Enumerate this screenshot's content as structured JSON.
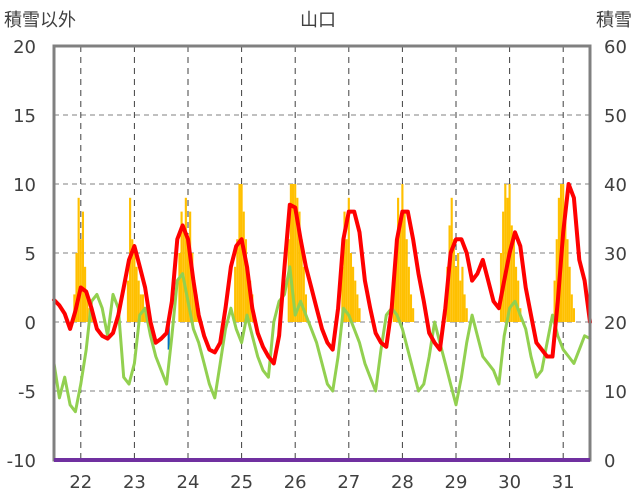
{
  "chart_data": {
    "type": "bar",
    "title": "山口",
    "ylabel": "積雪以外",
    "y2label": "積雪",
    "ylim": [
      -10,
      20
    ],
    "y2lim": [
      0,
      60
    ],
    "yticks": [
      "20",
      "15",
      "10",
      "5",
      "0",
      "-5",
      "-10"
    ],
    "y2ticks": [
      "60",
      "50",
      "40",
      "30",
      "20",
      "10",
      "0"
    ],
    "xlim": [
      21.5,
      31.5
    ],
    "xticks": [
      "22",
      "23",
      "24",
      "25",
      "26",
      "27",
      "28",
      "29",
      "30",
      "31"
    ],
    "grid": "vertical dashed, horizontal dashed",
    "colors": {
      "precip": "#ffc000",
      "temperature": "#ff0000",
      "dewpoint": "#92d050",
      "blue_mark": "#0070c0",
      "snow_baseline": "#7030a0",
      "frame": "#808080"
    },
    "series": [
      {
        "type": "bar",
        "color": "#ffc000",
        "x": [
          21.88,
          21.92,
          21.96,
          22.0,
          22.04,
          22.08,
          22.12,
          22.16,
          22.2,
          22.88,
          22.92,
          22.96,
          23.0,
          23.04,
          23.08,
          23.12,
          23.16,
          23.2,
          23.84,
          23.88,
          23.92,
          23.96,
          24.0,
          24.04,
          24.08,
          24.12,
          24.16,
          24.2,
          24.88,
          24.92,
          24.96,
          25.0,
          25.04,
          25.08,
          25.12,
          25.16,
          25.2,
          25.88,
          25.92,
          25.96,
          26.0,
          26.04,
          26.08,
          26.12,
          26.16,
          26.2,
          26.88,
          26.92,
          26.96,
          27.0,
          27.04,
          27.08,
          27.12,
          27.16,
          27.2,
          27.84,
          27.88,
          27.92,
          27.96,
          28.0,
          28.04,
          28.08,
          28.12,
          28.16,
          28.2,
          28.84,
          28.88,
          28.92,
          28.96,
          29.0,
          29.04,
          29.08,
          29.12,
          29.16,
          29.2,
          29.84,
          29.88,
          29.92,
          29.96,
          30.0,
          30.04,
          30.08,
          30.12,
          30.16,
          30.2,
          30.84,
          30.88,
          30.92,
          30.96,
          31.0,
          31.04,
          31.08,
          31.12,
          31.16,
          31.2
        ],
        "values": [
          2,
          5,
          9,
          6,
          8,
          4,
          2,
          1,
          1,
          3,
          9,
          6,
          5,
          4,
          3,
          2,
          2,
          1,
          5,
          8,
          7,
          9,
          6,
          8,
          5,
          3,
          2,
          1,
          4,
          6,
          10,
          10,
          8,
          6,
          4,
          3,
          2,
          6,
          10,
          10,
          10,
          9,
          8,
          6,
          4,
          2,
          4,
          8,
          6,
          9,
          5,
          4,
          3,
          2,
          1,
          3,
          6,
          9,
          7,
          10,
          8,
          6,
          4,
          2,
          1,
          4,
          7,
          9,
          6,
          4,
          5,
          3,
          4,
          2,
          1,
          5,
          8,
          10,
          9,
          10,
          7,
          6,
          4,
          3,
          1,
          3,
          6,
          9,
          10,
          10,
          8,
          6,
          4,
          2,
          1
        ]
      },
      {
        "type": "line",
        "color": "#ff0000",
        "x": [
          21.5,
          21.6,
          21.7,
          21.8,
          21.9,
          22.0,
          22.1,
          22.2,
          22.3,
          22.4,
          22.5,
          22.6,
          22.7,
          22.8,
          22.9,
          23.0,
          23.1,
          23.2,
          23.3,
          23.4,
          23.5,
          23.6,
          23.7,
          23.8,
          23.9,
          24.0,
          24.1,
          24.2,
          24.3,
          24.4,
          24.5,
          24.6,
          24.7,
          24.8,
          24.9,
          25.0,
          25.1,
          25.2,
          25.3,
          25.4,
          25.5,
          25.6,
          25.7,
          25.8,
          25.9,
          26.0,
          26.1,
          26.2,
          26.3,
          26.4,
          26.5,
          26.6,
          26.7,
          26.8,
          26.9,
          27.0,
          27.1,
          27.2,
          27.3,
          27.4,
          27.5,
          27.6,
          27.7,
          27.8,
          27.9,
          28.0,
          28.1,
          28.2,
          28.3,
          28.4,
          28.5,
          28.6,
          28.7,
          28.8,
          28.9,
          29.0,
          29.1,
          29.2,
          29.3,
          29.4,
          29.5,
          29.6,
          29.7,
          29.8,
          29.9,
          30.0,
          30.1,
          30.2,
          30.3,
          30.4,
          30.5,
          30.6,
          30.7,
          30.8,
          30.9,
          31.0,
          31.1,
          31.2,
          31.3,
          31.4,
          31.5
        ],
        "values": [
          1.6,
          1.2,
          0.6,
          -0.5,
          0.8,
          2.5,
          2.2,
          1.0,
          -0.5,
          -1.0,
          -1.2,
          -0.8,
          0.5,
          2.5,
          4.5,
          5.5,
          4.0,
          2.5,
          0.0,
          -1.5,
          -1.2,
          -0.8,
          1.5,
          6.0,
          7.0,
          6.0,
          3.0,
          0.5,
          -1.0,
          -2.0,
          -2.2,
          -1.5,
          1.0,
          4.0,
          5.5,
          6.0,
          4.0,
          1.0,
          -0.8,
          -1.8,
          -2.5,
          -3.0,
          -1.0,
          4.0,
          8.5,
          8.3,
          6.0,
          4.0,
          2.5,
          1.0,
          -0.5,
          -1.5,
          -2.0,
          1.0,
          6.0,
          8.0,
          8.0,
          6.5,
          3.0,
          1.0,
          -0.8,
          -1.5,
          -1.8,
          1.0,
          6.0,
          8.0,
          8.0,
          6.0,
          3.5,
          1.5,
          -0.8,
          -1.5,
          -2.0,
          1.0,
          5.0,
          6.0,
          6.0,
          5.0,
          3.0,
          3.5,
          4.5,
          3.0,
          1.5,
          1.0,
          3.0,
          5.0,
          6.5,
          5.5,
          2.5,
          0.5,
          -1.5,
          -2.0,
          -2.5,
          -2.5,
          1.5,
          6.5,
          10.0,
          9.0,
          4.5,
          3.0,
          0.0
        ]
      },
      {
        "type": "line",
        "color": "#92d050",
        "x": [
          21.5,
          21.6,
          21.7,
          21.8,
          21.9,
          22.0,
          22.1,
          22.2,
          22.3,
          22.4,
          22.5,
          22.6,
          22.7,
          22.8,
          22.9,
          23.0,
          23.1,
          23.2,
          23.3,
          23.4,
          23.5,
          23.6,
          23.7,
          23.8,
          23.9,
          24.0,
          24.1,
          24.2,
          24.3,
          24.4,
          24.5,
          24.6,
          24.7,
          24.8,
          24.9,
          25.0,
          25.1,
          25.2,
          25.3,
          25.4,
          25.5,
          25.6,
          25.7,
          25.8,
          25.9,
          26.0,
          26.1,
          26.2,
          26.3,
          26.4,
          26.5,
          26.6,
          26.7,
          26.8,
          26.9,
          27.0,
          27.1,
          27.2,
          27.3,
          27.4,
          27.5,
          27.6,
          27.7,
          27.8,
          27.9,
          28.0,
          28.1,
          28.2,
          28.3,
          28.4,
          28.5,
          28.6,
          28.7,
          28.8,
          28.9,
          29.0,
          29.1,
          29.2,
          29.3,
          29.4,
          29.5,
          29.6,
          29.7,
          29.8,
          29.9,
          30.0,
          30.1,
          30.2,
          30.3,
          30.4,
          30.5,
          30.6,
          30.7,
          30.8,
          30.9,
          31.0,
          31.1,
          31.2,
          31.3,
          31.4,
          31.5
        ],
        "values": [
          -3.0,
          -5.5,
          -4.0,
          -6.0,
          -6.5,
          -4.5,
          -2.0,
          1.5,
          2.0,
          1.0,
          -1.0,
          2.0,
          1.0,
          -4.0,
          -4.5,
          -3.0,
          0.5,
          1.0,
          -1.0,
          -2.5,
          -3.5,
          -4.5,
          -1.0,
          3.0,
          3.5,
          1.5,
          -0.5,
          -1.5,
          -3.0,
          -4.5,
          -5.5,
          -3.0,
          -0.5,
          1.0,
          -0.5,
          -1.5,
          0.5,
          -1.0,
          -2.5,
          -3.5,
          -4.0,
          0.0,
          1.5,
          2.0,
          4.0,
          0.5,
          1.5,
          0.5,
          -0.5,
          -1.5,
          -3.0,
          -4.5,
          -5.0,
          -2.5,
          1.0,
          0.5,
          -0.5,
          -1.5,
          -3.0,
          -4.0,
          -5.0,
          -2.0,
          0.5,
          1.0,
          0.5,
          -0.5,
          -2.0,
          -3.5,
          -5.0,
          -4.5,
          -2.5,
          0.0,
          -1.5,
          -3.0,
          -4.5,
          -6.0,
          -4.0,
          -1.5,
          0.5,
          -1.0,
          -2.5,
          -3.0,
          -3.5,
          -4.5,
          -1.0,
          1.0,
          1.5,
          0.5,
          -0.5,
          -2.5,
          -4.0,
          -3.5,
          -1.5,
          0.5,
          -1.0,
          -2.0,
          -2.5,
          -3.0,
          -2.0,
          -1.0,
          -1.2
        ]
      },
      {
        "type": "bar",
        "color": "#0070c0",
        "x": [
          23.64
        ],
        "values": [
          -2.0
        ]
      }
    ]
  }
}
